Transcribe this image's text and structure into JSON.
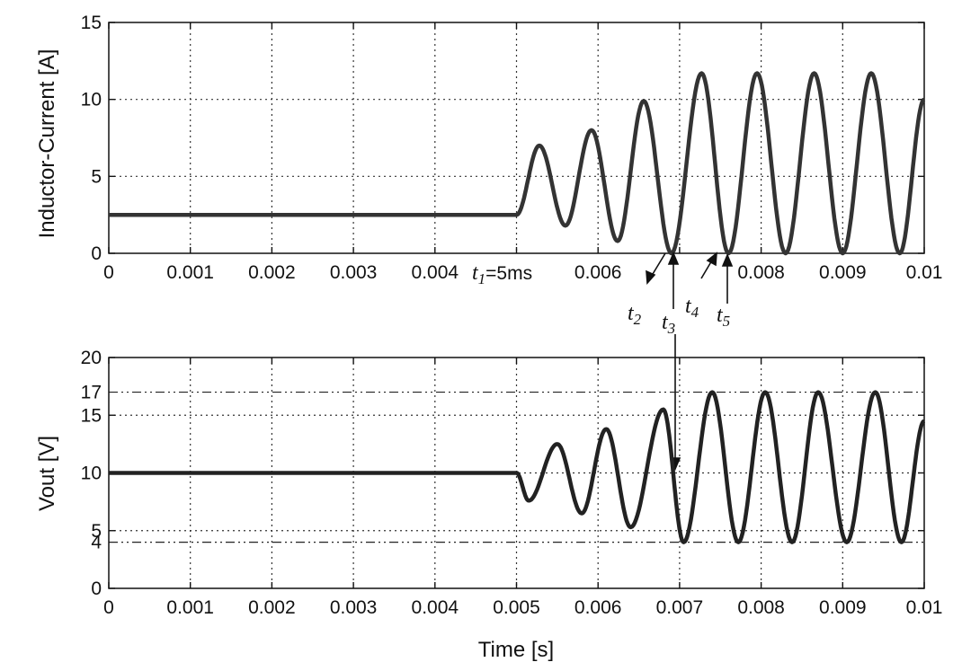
{
  "chart_data": [
    {
      "type": "line",
      "title": "",
      "xlabel": "",
      "ylabel": "Inductor-Current [A]",
      "xlim": [
        0,
        0.01
      ],
      "ylim": [
        0,
        15
      ],
      "grid": true,
      "xticks": [
        0,
        0.001,
        0.002,
        0.003,
        0.004,
        0.005,
        0.006,
        0.007,
        0.008,
        0.009,
        0.01
      ],
      "xtick_labels": [
        "0",
        "0.001",
        "0.002",
        "0.003",
        "0.004",
        "",
        "0.006",
        "",
        "0.008",
        "0.009",
        "0.01"
      ],
      "yticks": [
        0,
        5,
        10,
        15
      ],
      "ytick_labels": [
        "0",
        "5",
        "10",
        "15"
      ],
      "series": [
        {
          "x": [
            0,
            0.005,
            0.00528,
            0.0056,
            0.00592,
            0.00624,
            0.00656,
            0.0069,
            0.00727,
            0.0076,
            0.00795,
            0.0083,
            0.00865,
            0.009,
            0.00935,
            0.0097,
            0.01
          ],
          "values": [
            2.5,
            2.5,
            7,
            1.8,
            8,
            0.8,
            9.9,
            0,
            11.7,
            0,
            11.7,
            0,
            11.7,
            0,
            11.7,
            0,
            10
          ]
        }
      ],
      "annotations": {
        "t1_label": "t",
        "t1_sub": "1",
        "t1_rest": "=5ms",
        "t2": "t",
        "t2_sub": "2",
        "t3": "t",
        "t3_sub": "3",
        "t4": "t",
        "t4_sub": "4",
        "t5": "t",
        "t5_sub": "5"
      }
    },
    {
      "type": "line",
      "title": "",
      "xlabel": "Time [s]",
      "ylabel": "Vout [V]",
      "xlim": [
        0,
        0.01
      ],
      "ylim": [
        0,
        20
      ],
      "grid": true,
      "xticks": [
        0,
        0.001,
        0.002,
        0.003,
        0.004,
        0.005,
        0.006,
        0.007,
        0.008,
        0.009,
        0.01
      ],
      "xtick_labels": [
        "0",
        "0.001",
        "0.002",
        "0.003",
        "0.004",
        "0.005",
        "0.006",
        "0.007",
        "0.008",
        "0.009",
        "0.01"
      ],
      "yticks": [
        0,
        5,
        10,
        15,
        20
      ],
      "ytick_labels": [
        "0",
        "5",
        "10",
        "15",
        "20"
      ],
      "reference_lines": [
        {
          "y": 17,
          "label": "17"
        },
        {
          "y": 4,
          "label": "4"
        }
      ],
      "series": [
        {
          "x": [
            0,
            0.005,
            0.00515,
            0.0055,
            0.0058,
            0.0061,
            0.0064,
            0.0068,
            0.00705,
            0.0074,
            0.00772,
            0.00805,
            0.00838,
            0.0087,
            0.00905,
            0.0094,
            0.00972,
            0.01
          ],
          "values": [
            10,
            10,
            7.6,
            12.5,
            6.5,
            13.8,
            5.3,
            15.5,
            4,
            17,
            4,
            17,
            4,
            17,
            4,
            17,
            4,
            14.5
          ]
        }
      ]
    }
  ]
}
